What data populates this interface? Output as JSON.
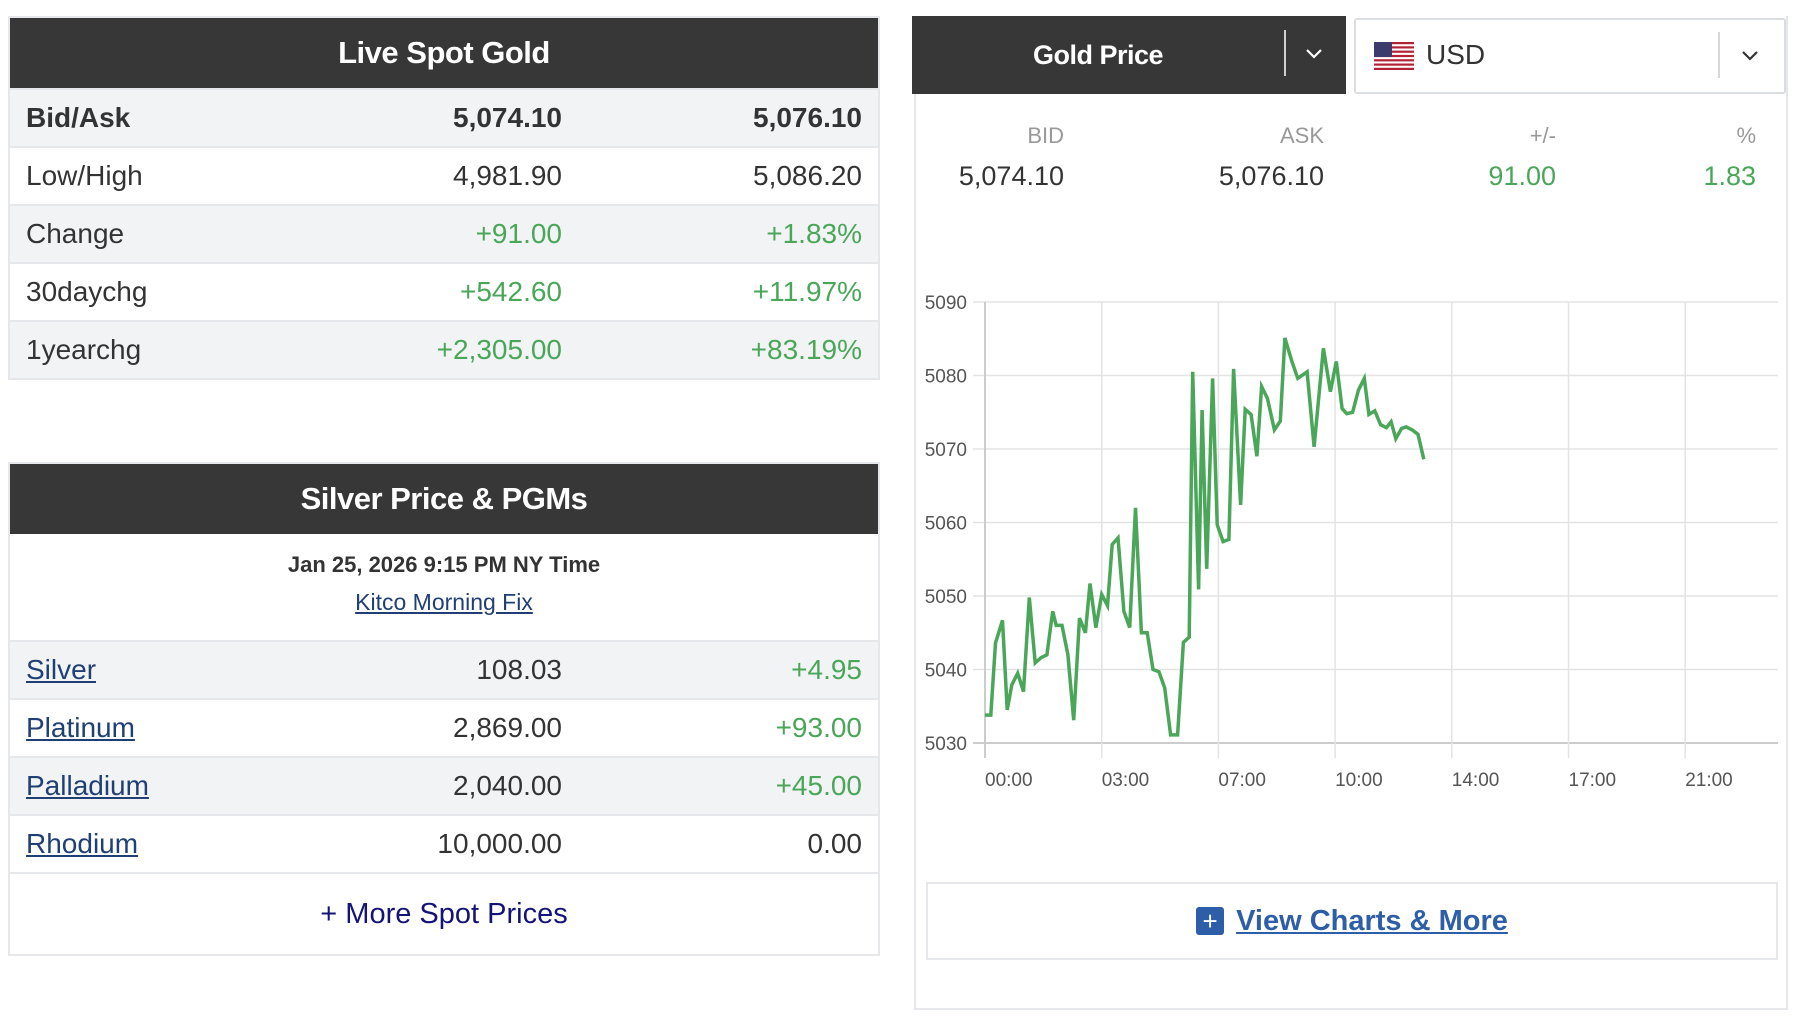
{
  "live_spot_gold": {
    "title": "Live Spot Gold",
    "rows": [
      {
        "label": "Bid/Ask",
        "v1": "5,074.10",
        "v2": "5,076.10"
      },
      {
        "label": "Low/High",
        "v1": "4,981.90",
        "v2": "5,086.20"
      },
      {
        "label": "Change",
        "v1": "+91.00",
        "v2": "+1.83%"
      },
      {
        "label": "30daychg",
        "v1": "+542.60",
        "v2": "+11.97%"
      },
      {
        "label": "1yearchg",
        "v1": "+2,305.00",
        "v2": "+83.19%"
      }
    ]
  },
  "silver_pgms": {
    "title": "Silver Price & PGMs",
    "timestamp": "Jan 25, 2026 9:15 PM NY Time",
    "fix_link": "Kitco Morning Fix",
    "rows": [
      {
        "metal": "Silver",
        "price": "108.03",
        "change": "+4.95"
      },
      {
        "metal": "Platinum",
        "price": "2,869.00",
        "change": "+93.00"
      },
      {
        "metal": "Palladium",
        "price": "2,040.00",
        "change": "+45.00"
      },
      {
        "metal": "Rhodium",
        "price": "10,000.00",
        "change": "0.00"
      }
    ],
    "more_link": "+ More Spot Prices"
  },
  "gold_price_widget": {
    "metal_select": "Gold Price",
    "currency_select": "USD",
    "currency_flag_icon": "us-flag-icon",
    "quote": {
      "bid_label": "BID",
      "bid": "5,074.10",
      "ask_label": "ASK",
      "ask": "5,076.10",
      "chg_label": "+/-",
      "chg": "91.00",
      "pct_label": "%",
      "pct": "1.83"
    },
    "view_more": "View Charts & More"
  },
  "colors": {
    "header_bg": "#373737",
    "positive": "#4aa658",
    "link": "#1f3f75",
    "line": "#4aa658",
    "button_blue": "#2e5ea8"
  },
  "chart_data": {
    "type": "line",
    "title": "",
    "xlabel": "",
    "ylabel": "",
    "x_tick_labels": [
      "00:00",
      "03:00",
      "07:00",
      "10:00",
      "14:00",
      "17:00",
      "21:00"
    ],
    "x_range_ticks": [
      0,
      6.8
    ],
    "yticks": [
      5030,
      5040,
      5050,
      5060,
      5070,
      5080,
      5090
    ],
    "ylim": [
      5030,
      5090
    ],
    "grid": true,
    "legend": "none",
    "series": [
      {
        "name": "Gold Price (USD)",
        "color": "#4aa658",
        "x_note": "x in tick-interval units (0 = 00:00 tick, 1 = 03:00 tick, ...)",
        "points": [
          [
            0.0,
            5033.8
          ],
          [
            0.05,
            5033.8
          ],
          [
            0.09,
            5043.6
          ],
          [
            0.15,
            5046.7
          ],
          [
            0.19,
            5034.5
          ],
          [
            0.23,
            5037.9
          ],
          [
            0.28,
            5039.5
          ],
          [
            0.33,
            5037.0
          ],
          [
            0.38,
            5049.8
          ],
          [
            0.43,
            5040.9
          ],
          [
            0.48,
            5041.6
          ],
          [
            0.53,
            5042.0
          ],
          [
            0.58,
            5047.9
          ],
          [
            0.61,
            5046.0
          ],
          [
            0.66,
            5046.0
          ],
          [
            0.71,
            5042.0
          ],
          [
            0.76,
            5033.1
          ],
          [
            0.81,
            5047.0
          ],
          [
            0.86,
            5045.0
          ],
          [
            0.9,
            5051.7
          ],
          [
            0.95,
            5045.7
          ],
          [
            1.0,
            5050.2
          ],
          [
            1.05,
            5048.7
          ],
          [
            1.09,
            5057.0
          ],
          [
            1.14,
            5057.9
          ],
          [
            1.19,
            5047.9
          ],
          [
            1.24,
            5045.7
          ],
          [
            1.29,
            5062.0
          ],
          [
            1.34,
            5045.0
          ],
          [
            1.39,
            5045.0
          ],
          [
            1.44,
            5040.0
          ],
          [
            1.49,
            5039.7
          ],
          [
            1.54,
            5037.5
          ],
          [
            1.59,
            5031.1
          ],
          [
            1.65,
            5031.1
          ],
          [
            1.7,
            5043.7
          ],
          [
            1.75,
            5044.4
          ],
          [
            1.78,
            5080.5
          ],
          [
            1.83,
            5050.9
          ],
          [
            1.86,
            5075.3
          ],
          [
            1.9,
            5053.7
          ],
          [
            1.95,
            5079.6
          ],
          [
            1.99,
            5059.7
          ],
          [
            2.04,
            5057.4
          ],
          [
            2.09,
            5057.7
          ],
          [
            2.13,
            5080.9
          ],
          [
            2.19,
            5062.4
          ],
          [
            2.23,
            5075.4
          ],
          [
            2.28,
            5074.7
          ],
          [
            2.33,
            5069.0
          ],
          [
            2.37,
            5078.5
          ],
          [
            2.42,
            5076.9
          ],
          [
            2.48,
            5072.6
          ],
          [
            2.53,
            5073.8
          ],
          [
            2.57,
            5085.1
          ],
          [
            2.63,
            5081.9
          ],
          [
            2.68,
            5079.6
          ],
          [
            2.76,
            5080.5
          ],
          [
            2.82,
            5070.3
          ],
          [
            2.9,
            5083.7
          ],
          [
            2.96,
            5077.8
          ],
          [
            3.01,
            5081.9
          ],
          [
            3.06,
            5075.5
          ],
          [
            3.1,
            5074.8
          ],
          [
            3.15,
            5075.0
          ],
          [
            3.2,
            5078.0
          ],
          [
            3.25,
            5079.6
          ],
          [
            3.29,
            5074.7
          ],
          [
            3.34,
            5075.2
          ],
          [
            3.39,
            5073.3
          ],
          [
            3.44,
            5072.9
          ],
          [
            3.48,
            5073.7
          ],
          [
            3.52,
            5071.4
          ],
          [
            3.57,
            5072.8
          ],
          [
            3.61,
            5073.0
          ],
          [
            3.66,
            5072.6
          ],
          [
            3.71,
            5072.0
          ],
          [
            3.76,
            5068.6
          ]
        ]
      }
    ]
  }
}
